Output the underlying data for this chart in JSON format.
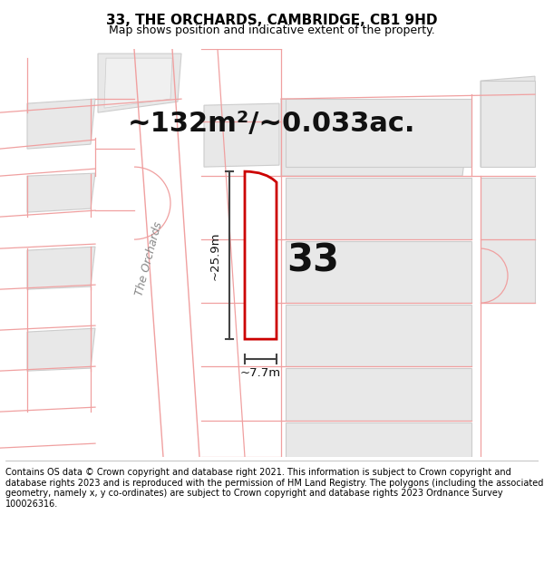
{
  "title": "33, THE ORCHARDS, CAMBRIDGE, CB1 9HD",
  "subtitle": "Map shows position and indicative extent of the property.",
  "area_text": "~132m²/~0.033ac.",
  "dim_length": "~25.9m",
  "dim_width": "~7.7m",
  "label_number": "33",
  "road_label": "The Orchards",
  "footer": "Contains OS data © Crown copyright and database right 2021. This information is subject to Crown copyright and database rights 2023 and is reproduced with the permission of HM Land Registry. The polygons (including the associated geometry, namely x, y co-ordinates) are subject to Crown copyright and database rights 2023 Ordnance Survey 100026316.",
  "bg_color": "#ffffff",
  "map_bg_color": "#ffffff",
  "building_color": "#e8e8e8",
  "building_edge_color": "#cccccc",
  "highlight_color": "#cc0000",
  "highlight_fill": "#ffffff",
  "pink_line": "#f0a0a0",
  "dim_line_color": "#444444",
  "title_fontsize": 11,
  "subtitle_fontsize": 9,
  "area_fontsize": 22,
  "label_fontsize": 30,
  "footer_fontsize": 7.0
}
